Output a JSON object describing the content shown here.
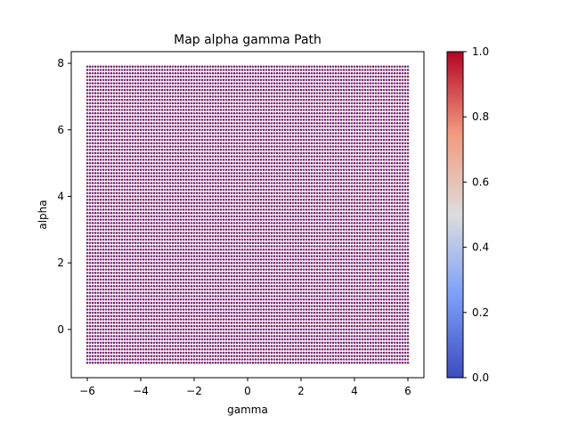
{
  "chart_data": {
    "type": "scatter",
    "title": "Map alpha gamma Path",
    "xlabel": "gamma",
    "ylabel": "alpha",
    "xlim": [
      -6.6,
      6.6
    ],
    "ylim": [
      -1.45,
      8.35
    ],
    "xticks": [
      -6,
      -4,
      -2,
      0,
      2,
      4,
      6
    ],
    "yticks": [
      0,
      2,
      4,
      6,
      8
    ],
    "grid": false,
    "x_range": [
      -6,
      6
    ],
    "y_range": [
      -1,
      7.9
    ],
    "x_count": 121,
    "y_count": 90,
    "colormap": {
      "name": "coolwarm",
      "range": [
        0,
        1
      ],
      "ticks": [
        0.0,
        0.2,
        0.4,
        0.6,
        0.8,
        1.0
      ],
      "tick_labels": [
        "0.0",
        "0.2",
        "0.4",
        "0.6",
        "0.8",
        "1.0"
      ],
      "low_color": "#3b4cc0",
      "mid_color": "#dddddd",
      "high_color": "#b40426"
    },
    "value_pattern": "alternating 0 and 1 between neighbouring columns and rows (checkerboard); denser red toward low gamma"
  }
}
